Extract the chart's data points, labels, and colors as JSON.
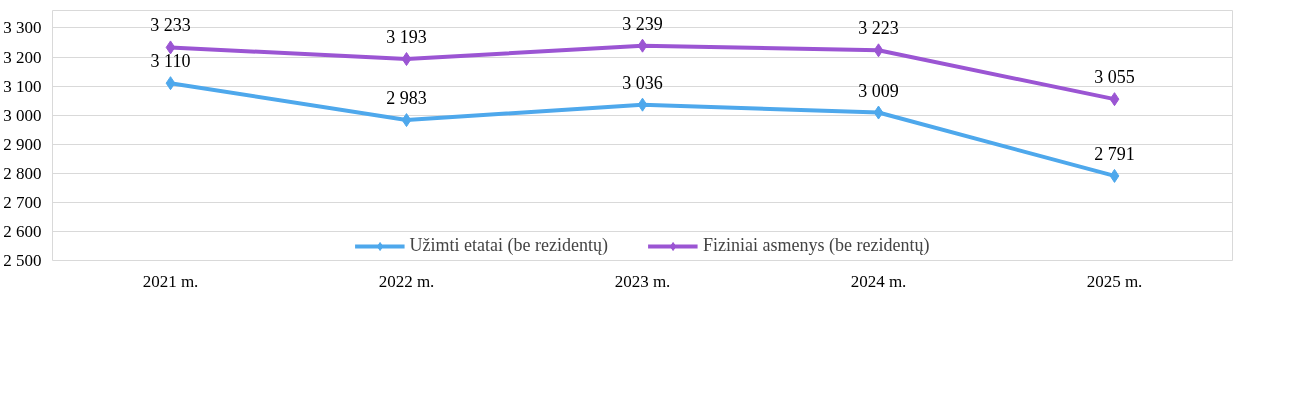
{
  "chart_data": {
    "type": "line",
    "categories": [
      "2021 m.",
      "2022 m.",
      "2023 m.",
      "2024 m.",
      "2025 m."
    ],
    "series": [
      {
        "name": "Užimti etatai (be rezidentų)",
        "color": "#4ea8ec",
        "values": [
          3110,
          2983,
          3036,
          3009,
          2791
        ],
        "value_labels": [
          "3 110",
          "2 983",
          "3 036",
          "3 009",
          "2 791"
        ]
      },
      {
        "name": "Fiziniai asmenys (be rezidentų)",
        "color": "#9b55d3",
        "values": [
          3233,
          3193,
          3239,
          3223,
          3055
        ],
        "value_labels": [
          "3 233",
          "3 193",
          "3 239",
          "3 223",
          "3 055"
        ]
      }
    ],
    "ylim": [
      2500,
      3360
    ],
    "yticks": [
      {
        "value": 2500,
        "label": "2 500"
      },
      {
        "value": 2600,
        "label": "2 600"
      },
      {
        "value": 2700,
        "label": "2 700"
      },
      {
        "value": 2800,
        "label": "2 800"
      },
      {
        "value": 2900,
        "label": "2 900"
      },
      {
        "value": 3000,
        "label": "3 000"
      },
      {
        "value": 3100,
        "label": "3 100"
      },
      {
        "value": 3200,
        "label": "3 200"
      },
      {
        "value": 3300,
        "label": "3 300"
      }
    ],
    "grid": "y",
    "legend": "bottom",
    "marker": "diamond",
    "line_style": "solid"
  }
}
